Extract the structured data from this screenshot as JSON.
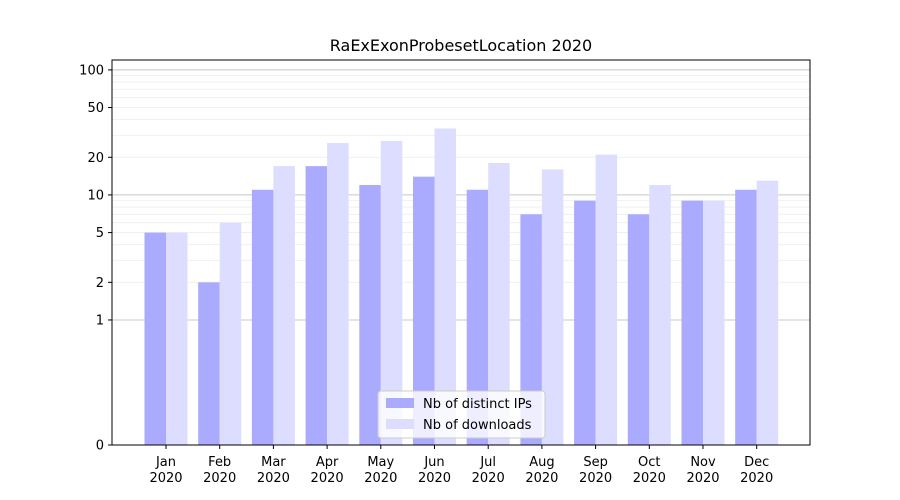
{
  "chart_data": {
    "type": "bar",
    "title": "RaExExonProbesetLocation 2020",
    "xlabel": "",
    "ylabel": "",
    "y_scale": "symlog",
    "ylim": [
      0,
      120
    ],
    "yticks": [
      0,
      1,
      2,
      5,
      10,
      20,
      50,
      100
    ],
    "grid": true,
    "legend_position": "lower-center",
    "categories": [
      "Jan\n2020",
      "Feb\n2020",
      "Mar\n2020",
      "Apr\n2020",
      "May\n2020",
      "Jun\n2020",
      "Jul\n2020",
      "Aug\n2020",
      "Sep\n2020",
      "Oct\n2020",
      "Nov\n2020",
      "Dec\n2020"
    ],
    "series": [
      {
        "name": "Nb of distinct IPs",
        "color": "#aaaaff",
        "values": [
          5,
          2,
          11,
          17,
          12,
          14,
          11,
          7,
          9,
          7,
          9,
          11
        ]
      },
      {
        "name": "Nb of downloads",
        "color": "#ddddff",
        "values": [
          5,
          6,
          17,
          26,
          27,
          34,
          18,
          16,
          21,
          12,
          9,
          13
        ]
      }
    ]
  }
}
